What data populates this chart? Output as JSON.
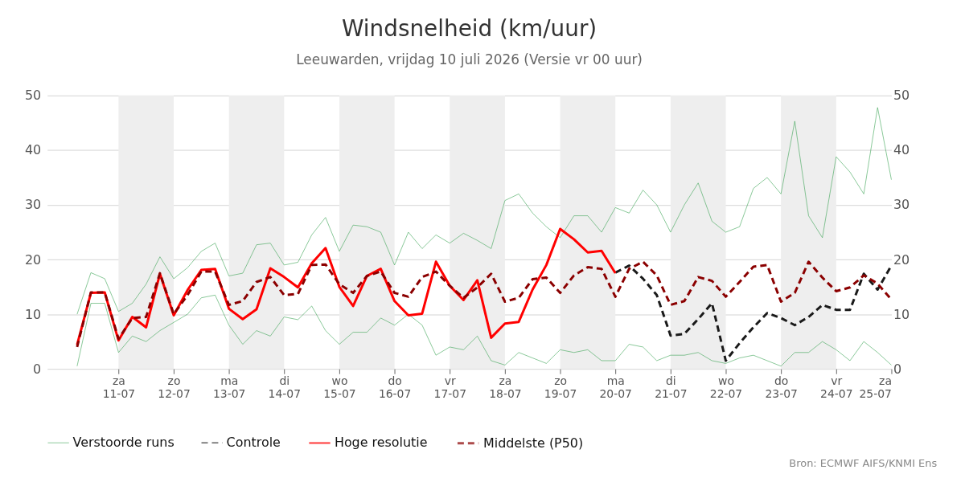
{
  "chart_data": {
    "type": "line",
    "title": "Windsnelheid (km/uur)",
    "subtitle": "Leeuwarden, vrijdag 10 juli 2026 (Versie vr 00 uur)",
    "x": [
      "2026-07-10T06:00",
      "2026-07-10T12:00",
      "2026-07-10T18:00",
      "2026-07-11T00:00",
      "2026-07-11T06:00",
      "2026-07-11T12:00",
      "2026-07-11T18:00",
      "2026-07-12T00:00",
      "2026-07-12T06:00",
      "2026-07-12T12:00",
      "2026-07-12T18:00",
      "2026-07-13T00:00",
      "2026-07-13T06:00",
      "2026-07-13T12:00",
      "2026-07-13T18:00",
      "2026-07-14T00:00",
      "2026-07-14T06:00",
      "2026-07-14T12:00",
      "2026-07-14T18:00",
      "2026-07-15T00:00",
      "2026-07-15T06:00",
      "2026-07-15T12:00",
      "2026-07-15T18:00",
      "2026-07-16T00:00",
      "2026-07-16T06:00",
      "2026-07-16T12:00",
      "2026-07-16T18:00",
      "2026-07-17T00:00",
      "2026-07-17T06:00",
      "2026-07-17T12:00",
      "2026-07-17T18:00",
      "2026-07-18T00:00",
      "2026-07-18T06:00",
      "2026-07-18T12:00",
      "2026-07-18T18:00",
      "2026-07-19T00:00",
      "2026-07-19T06:00",
      "2026-07-19T12:00",
      "2026-07-19T18:00",
      "2026-07-20T00:00",
      "2026-07-20T06:00",
      "2026-07-20T12:00",
      "2026-07-20T18:00",
      "2026-07-21T00:00",
      "2026-07-21T06:00",
      "2026-07-21T12:00",
      "2026-07-21T18:00",
      "2026-07-22T00:00",
      "2026-07-22T06:00",
      "2026-07-22T12:00",
      "2026-07-22T18:00",
      "2026-07-23T00:00",
      "2026-07-23T06:00",
      "2026-07-23T12:00",
      "2026-07-23T18:00",
      "2026-07-24T00:00",
      "2026-07-24T06:00",
      "2026-07-24T12:00",
      "2026-07-24T18:00",
      "2026-07-25T00:00"
    ],
    "xlim": [
      "2026-07-09T17:00",
      "2026-07-25T00:00"
    ],
    "xticks": [
      {
        "value": "2026-07-11T00:00",
        "label": "za\n11-07"
      },
      {
        "value": "2026-07-12T00:00",
        "label": "zo\n12-07"
      },
      {
        "value": "2026-07-13T00:00",
        "label": "ma\n13-07"
      },
      {
        "value": "2026-07-14T00:00",
        "label": "di\n14-07"
      },
      {
        "value": "2026-07-15T00:00",
        "label": "wo\n15-07"
      },
      {
        "value": "2026-07-16T00:00",
        "label": "do\n16-07"
      },
      {
        "value": "2026-07-17T00:00",
        "label": "vr\n17-07"
      },
      {
        "value": "2026-07-18T00:00",
        "label": "za\n18-07"
      },
      {
        "value": "2026-07-19T00:00",
        "label": "zo\n19-07"
      },
      {
        "value": "2026-07-20T00:00",
        "label": "ma\n20-07"
      },
      {
        "value": "2026-07-21T00:00",
        "label": "di\n21-07"
      },
      {
        "value": "2026-07-22T00:00",
        "label": "wo\n22-07"
      },
      {
        "value": "2026-07-23T00:00",
        "label": "do\n23-07"
      },
      {
        "value": "2026-07-24T00:00",
        "label": "vr\n24-07"
      },
      {
        "value": "2026-07-25T00:00",
        "label": "za\n25-07"
      }
    ],
    "ylim": [
      0,
      50
    ],
    "yticks": [
      0,
      10,
      20,
      30,
      40,
      50
    ],
    "y2lim": [
      0,
      50
    ],
    "y2ticks": [
      0,
      10,
      20,
      30,
      40,
      50
    ],
    "grid": "y",
    "legend": "bottom",
    "bands": [
      {
        "axis": "x",
        "from": "2026-07-11T00:00",
        "to": "2026-07-12T00:00",
        "color": "#eeeeee"
      },
      {
        "axis": "x",
        "from": "2026-07-13T00:00",
        "to": "2026-07-14T00:00",
        "color": "#eeeeee"
      },
      {
        "axis": "x",
        "from": "2026-07-15T00:00",
        "to": "2026-07-16T00:00",
        "color": "#eeeeee"
      },
      {
        "axis": "x",
        "from": "2026-07-17T00:00",
        "to": "2026-07-18T00:00",
        "color": "#eeeeee"
      },
      {
        "axis": "x",
        "from": "2026-07-19T00:00",
        "to": "2026-07-20T00:00",
        "color": "#eeeeee"
      },
      {
        "axis": "x",
        "from": "2026-07-21T00:00",
        "to": "2026-07-22T00:00",
        "color": "#eeeeee"
      },
      {
        "axis": "x",
        "from": "2026-07-23T00:00",
        "to": "2026-07-24T00:00",
        "color": "#eeeeee"
      }
    ],
    "series": [
      {
        "name": "Verstoorde runs",
        "color": "#2e9e48",
        "line_style": "solid",
        "values": [
          10,
          17.6,
          16.5,
          10.5,
          12,
          15.5,
          20.5,
          16.5,
          18.5,
          21.5,
          23,
          17,
          17.5,
          22.7,
          23,
          19,
          19.5,
          24.5,
          27.7,
          21.5,
          26.3,
          26,
          25,
          19,
          25,
          22,
          24.5,
          23,
          24.8,
          23.5,
          22,
          30.8,
          32,
          28.5,
          26,
          24,
          28,
          28,
          25,
          29.5,
          28.5,
          32.7,
          30,
          25,
          30,
          34,
          27,
          25,
          26,
          33,
          35,
          32,
          45.3,
          28,
          24,
          38.8,
          36,
          32,
          47.8,
          34.6
        ]
      },
      {
        "color": "#2e9e48",
        "line_style": "solid",
        "values": [
          0.5,
          12,
          12,
          3,
          6,
          5,
          7,
          8.5,
          10,
          13,
          13.5,
          8,
          4.5,
          7,
          6,
          9.5,
          9,
          11.5,
          7,
          4.5,
          6.7,
          6.7,
          9.3,
          8,
          10,
          8,
          2.5,
          4,
          3.5,
          6,
          1.5,
          0.7,
          3,
          2,
          1,
          3.5,
          3,
          3.5,
          1.5,
          1.5,
          4.5,
          4,
          1.5,
          2.5,
          2.5,
          3,
          1.5,
          1,
          2,
          2.5,
          1.5,
          0.5,
          3,
          3,
          5,
          3.5,
          1.5,
          5,
          3,
          0.7
        ]
      },
      {
        "name": "Controle",
        "color": "#1a1a1a",
        "line_style": "dashed",
        "values": [
          null,
          null,
          null,
          null,
          null,
          null,
          null,
          null,
          null,
          null,
          null,
          null,
          null,
          null,
          null,
          null,
          null,
          null,
          null,
          null,
          null,
          null,
          null,
          null,
          null,
          null,
          null,
          null,
          null,
          null,
          null,
          null,
          null,
          null,
          null,
          null,
          null,
          null,
          null,
          17.6,
          18.9,
          16.5,
          13.5,
          6.1,
          6.4,
          9.1,
          12.0,
          1.5,
          4.7,
          7.6,
          10.2,
          9.3,
          8.0,
          9.5,
          11.7,
          10.8,
          10.8,
          17.4,
          14.5,
          18.9
        ]
      },
      {
        "name": "Hoge resolutie",
        "color": "#ff0000",
        "line_style": "solid",
        "values": [
          4.4,
          13.9,
          14.0,
          5.2,
          9.5,
          7.6,
          17.4,
          9.8,
          14.4,
          18.1,
          18.3,
          11.0,
          9.1,
          10.9,
          18.4,
          16.8,
          14.9,
          19.3,
          22.1,
          15,
          11.5,
          17,
          18.3,
          12.4,
          9.8,
          10.1,
          19.6,
          15.2,
          12.6,
          16.2,
          5.7,
          8.3,
          8.6,
          14.5,
          19,
          25.6,
          23.7,
          21.3,
          21.6,
          17.5,
          null,
          null,
          null,
          null,
          null,
          null,
          null,
          null,
          null,
          null,
          null,
          null,
          null,
          null,
          null,
          null,
          null,
          null,
          null,
          null
        ]
      },
      {
        "name": "Middelste (P50)",
        "color": "#8b0000",
        "line_style": "dashed",
        "values": [
          4,
          14,
          14,
          5.5,
          9.3,
          9.5,
          17.5,
          10,
          13.5,
          17.8,
          17.8,
          11.7,
          12.4,
          15.9,
          16.8,
          13.5,
          13.7,
          19.0,
          19.1,
          15.5,
          13.9,
          17.0,
          17.8,
          13.9,
          13.2,
          16.8,
          17.8,
          15.2,
          13.0,
          14.9,
          17.4,
          12.3,
          13,
          16.4,
          16.7,
          13.9,
          17.1,
          18.6,
          18.3,
          13.2,
          18.3,
          19.6,
          17.1,
          11.7,
          12.4,
          16.8,
          16.1,
          13.2,
          15.9,
          18.7,
          19.0,
          12.3,
          13.9,
          19.6,
          16.7,
          14.2,
          14.9,
          17.1,
          15.6,
          12.7
        ]
      }
    ],
    "annotations": [
      "Bron: ECMWF AIFS/KNMI Ens"
    ]
  }
}
